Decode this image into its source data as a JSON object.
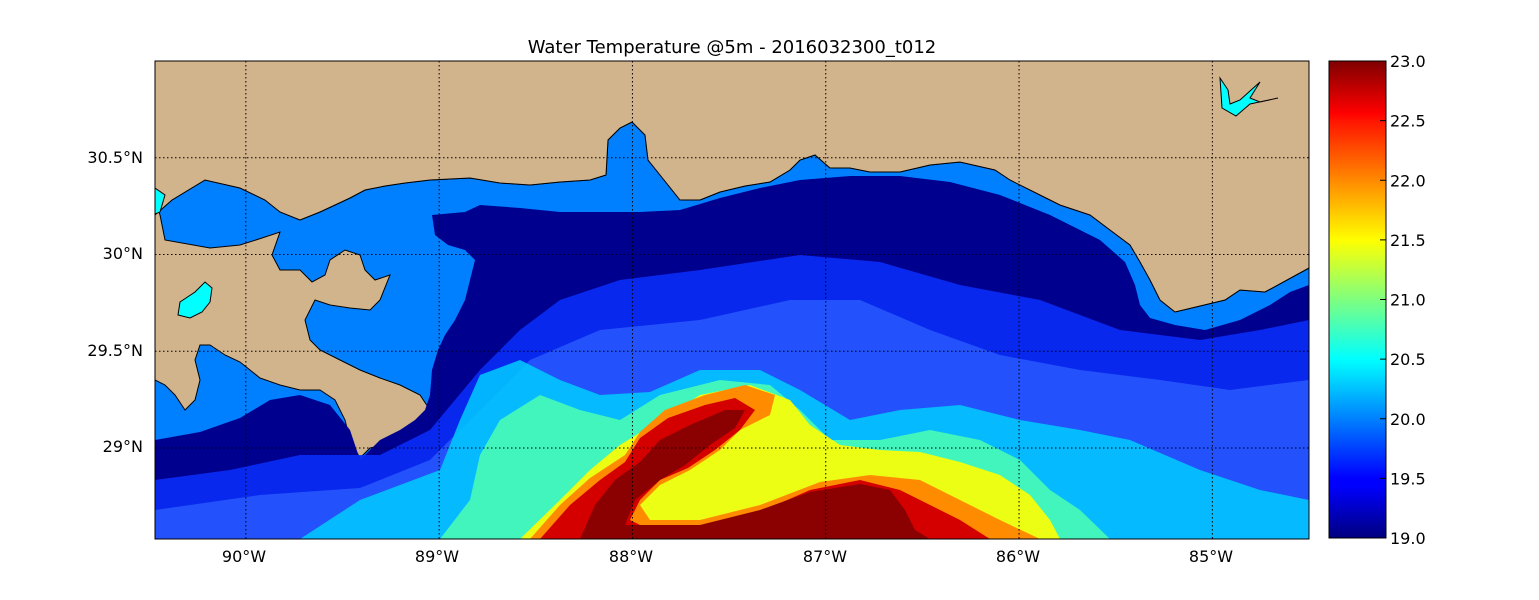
{
  "title": "Water Temperature @5m - 2016032300_t012",
  "map": {
    "lon_labels": [
      "90°W",
      "89°W",
      "88°W",
      "87°W",
      "86°W",
      "85°W"
    ],
    "lat_labels": [
      "30.5°N",
      "30°N",
      "29.5°N",
      "29°N"
    ],
    "lon_values": [
      -90,
      -89,
      -88,
      -87,
      -86,
      -85
    ],
    "lat_values": [
      30.5,
      30.0,
      29.5,
      29.0
    ],
    "extent": {
      "lon_min": -90.47,
      "lon_max": -84.5,
      "lat_min": 28.53,
      "lat_max": 31.0
    },
    "land_color": "#d2b48c",
    "inland_water_color": "#0080ff",
    "lake_color": "#00ffff",
    "coast_color": "#000000",
    "grid": true,
    "colormap": "jet"
  },
  "colorbar": {
    "min": 19.0,
    "max": 23.0,
    "tick_values": [
      19.0,
      19.5,
      20.0,
      20.5,
      21.0,
      21.5,
      22.0,
      22.5,
      23.0
    ],
    "tick_labels": [
      "19.0",
      "19.5",
      "20.0",
      "20.5",
      "21.0",
      "21.5",
      "22.0",
      "22.5",
      "23.0"
    ]
  }
}
